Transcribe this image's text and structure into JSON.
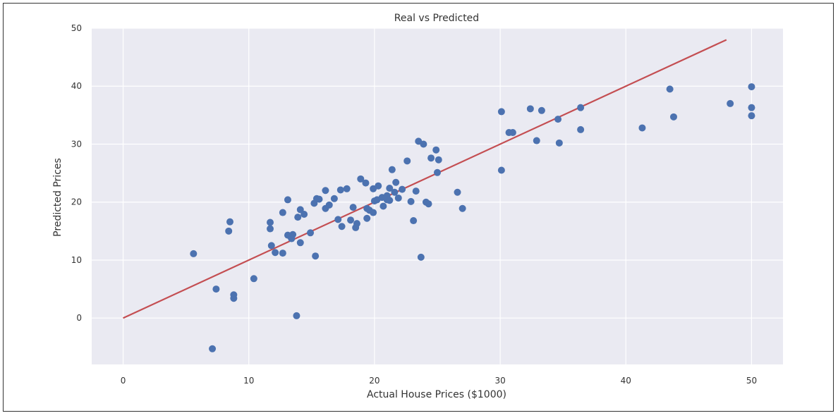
{
  "chart_data": {
    "type": "scatter",
    "title": "Real vs Predicted",
    "xlabel": "Actual House Prices ($1000)",
    "ylabel": "Predicted Prices",
    "xlim": [
      -2.5,
      52.5
    ],
    "ylim": [
      -8,
      50
    ],
    "xticks": [
      0,
      10,
      20,
      30,
      40,
      50
    ],
    "yticks": [
      0,
      10,
      20,
      30,
      40,
      50
    ],
    "grid": true,
    "colors": {
      "background": "#eaeaf2",
      "grid": "#ffffff",
      "points": "#4c72b0",
      "line": "#c44e52"
    },
    "series": [
      {
        "type": "scatter",
        "points": [
          [
            5.6,
            11.1
          ],
          [
            7.4,
            5.0
          ],
          [
            7.1,
            -5.3
          ],
          [
            8.4,
            15.0
          ],
          [
            8.5,
            16.6
          ],
          [
            8.8,
            4.0
          ],
          [
            8.8,
            3.4
          ],
          [
            10.4,
            6.8
          ],
          [
            11.7,
            16.5
          ],
          [
            11.7,
            15.4
          ],
          [
            11.8,
            12.5
          ],
          [
            12.1,
            11.3
          ],
          [
            12.7,
            18.2
          ],
          [
            12.7,
            11.2
          ],
          [
            13.1,
            20.4
          ],
          [
            13.1,
            14.3
          ],
          [
            13.3,
            14.1
          ],
          [
            13.5,
            14.4
          ],
          [
            13.4,
            13.7
          ],
          [
            13.9,
            17.4
          ],
          [
            14.1,
            18.7
          ],
          [
            14.1,
            13.0
          ],
          [
            14.4,
            17.9
          ],
          [
            13.8,
            0.4
          ],
          [
            14.9,
            14.7
          ],
          [
            15.2,
            19.8
          ],
          [
            15.3,
            10.7
          ],
          [
            15.4,
            20.6
          ],
          [
            15.6,
            20.5
          ],
          [
            16.1,
            18.9
          ],
          [
            16.1,
            22.0
          ],
          [
            16.4,
            19.5
          ],
          [
            16.8,
            20.6
          ],
          [
            17.1,
            17.0
          ],
          [
            17.3,
            22.1
          ],
          [
            17.4,
            15.8
          ],
          [
            17.8,
            22.3
          ],
          [
            18.1,
            16.9
          ],
          [
            18.3,
            19.1
          ],
          [
            18.5,
            15.6
          ],
          [
            18.6,
            16.3
          ],
          [
            18.9,
            24.0
          ],
          [
            19.3,
            23.3
          ],
          [
            19.4,
            17.2
          ],
          [
            19.4,
            18.9
          ],
          [
            19.6,
            18.6
          ],
          [
            19.9,
            22.3
          ],
          [
            19.9,
            18.2
          ],
          [
            20.0,
            20.2
          ],
          [
            20.2,
            20.4
          ],
          [
            20.3,
            22.8
          ],
          [
            20.6,
            20.8
          ],
          [
            20.7,
            19.3
          ],
          [
            21.0,
            20.4
          ],
          [
            21.0,
            21.1
          ],
          [
            21.2,
            22.4
          ],
          [
            21.2,
            20.3
          ],
          [
            21.4,
            25.6
          ],
          [
            21.6,
            21.7
          ],
          [
            21.7,
            23.4
          ],
          [
            21.9,
            20.7
          ],
          [
            22.2,
            22.2
          ],
          [
            22.6,
            27.1
          ],
          [
            22.9,
            20.1
          ],
          [
            23.1,
            16.8
          ],
          [
            23.3,
            21.9
          ],
          [
            23.5,
            30.5
          ],
          [
            23.7,
            10.5
          ],
          [
            23.9,
            30.0
          ],
          [
            24.1,
            20.0
          ],
          [
            24.3,
            19.7
          ],
          [
            24.5,
            27.6
          ],
          [
            24.9,
            29.0
          ],
          [
            25.0,
            25.1
          ],
          [
            25.1,
            27.3
          ],
          [
            26.6,
            21.7
          ],
          [
            27.0,
            18.9
          ],
          [
            30.1,
            35.6
          ],
          [
            30.1,
            25.5
          ],
          [
            30.7,
            32.0
          ],
          [
            31.0,
            32.0
          ],
          [
            32.4,
            36.1
          ],
          [
            32.9,
            30.6
          ],
          [
            33.3,
            35.8
          ],
          [
            34.6,
            34.3
          ],
          [
            34.7,
            30.2
          ],
          [
            36.4,
            36.3
          ],
          [
            36.4,
            32.5
          ],
          [
            41.3,
            32.8
          ],
          [
            43.5,
            39.5
          ],
          [
            43.8,
            34.7
          ],
          [
            48.3,
            37.0
          ],
          [
            50.0,
            39.9
          ],
          [
            50.0,
            36.3
          ],
          [
            50.0,
            34.9
          ]
        ]
      },
      {
        "type": "line",
        "points": [
          [
            0,
            0
          ],
          [
            48,
            48
          ]
        ]
      }
    ]
  }
}
